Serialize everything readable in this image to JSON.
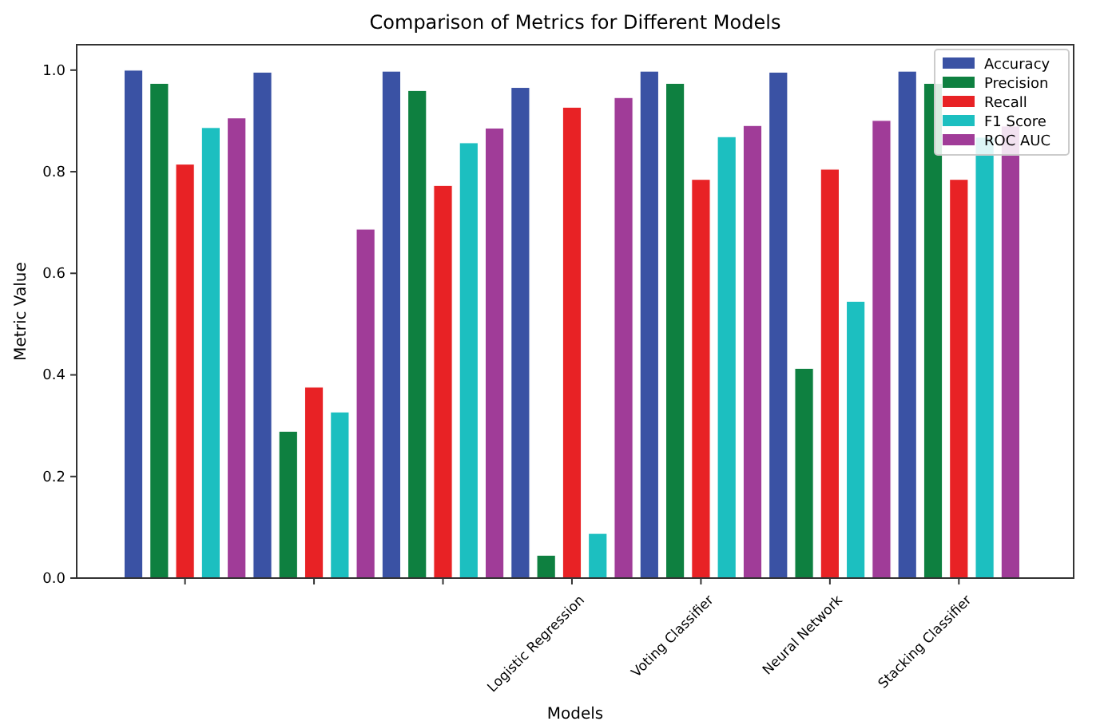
{
  "chart_data": {
    "type": "bar",
    "title": "Comparison of Metrics for Different Models",
    "xlabel": "Models",
    "ylabel": "Metric Value",
    "categories": [
      null,
      null,
      null,
      "Logistic Regression",
      "Voting Classifier",
      "Neural Network",
      "Stacking Classifier"
    ],
    "series": [
      {
        "name": "Accuracy",
        "color": "#3a52a4",
        "values": [
          1.0,
          0.996,
          0.998,
          0.966,
          0.998,
          0.996,
          0.998
        ]
      },
      {
        "name": "Precision",
        "color": "#0e8040",
        "values": [
          0.974,
          0.289,
          0.96,
          0.045,
          0.974,
          0.413,
          0.974
        ]
      },
      {
        "name": "Recall",
        "color": "#e82225",
        "values": [
          0.815,
          0.376,
          0.773,
          0.927,
          0.785,
          0.805,
          0.785
        ]
      },
      {
        "name": "F1 Score",
        "color": "#1cbfc0",
        "values": [
          0.887,
          0.327,
          0.857,
          0.088,
          0.869,
          0.545,
          0.868
        ]
      },
      {
        "name": "ROC AUC",
        "color": "#a03c98",
        "values": [
          0.906,
          0.687,
          0.886,
          0.946,
          0.891,
          0.901,
          0.89
        ]
      }
    ],
    "ylim": [
      0,
      1.05
    ],
    "yticks": [
      {
        "value": 0,
        "label": "0.0"
      },
      {
        "value": 0.2,
        "label": "0.2"
      },
      {
        "value": 0.4,
        "label": "0.4"
      },
      {
        "value": 0.6,
        "label": "0.6"
      },
      {
        "value": 0.8,
        "label": "0.8"
      },
      {
        "value": 1,
        "label": "1.0"
      }
    ],
    "legend": "top right",
    "grid": false
  }
}
